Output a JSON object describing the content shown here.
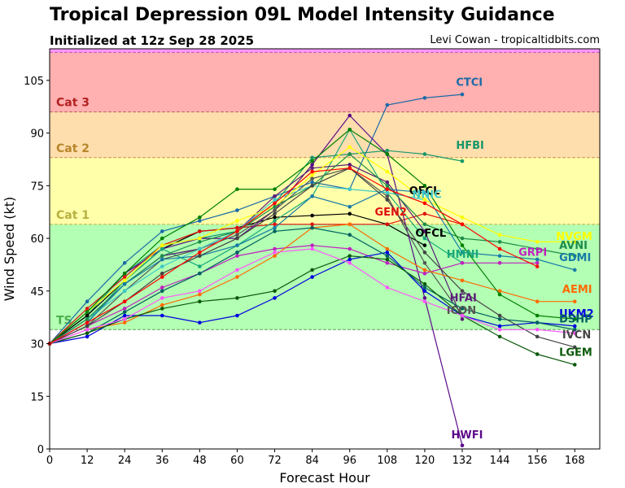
{
  "header": {
    "title": "Tropical Depression 09L Model Intensity Guidance",
    "subtitle": "Initialized at 12z Sep 28 2025",
    "credit": "Levi Cowan - tropicaltidbits.com"
  },
  "chart_data": {
    "type": "line",
    "title": "Tropical Depression 09L Model Intensity Guidance",
    "subtitle": "Initialized at 12z Sep 28 2025",
    "xlabel": "Forecast Hour",
    "ylabel": "Wind Speed (kt)",
    "xlim": [
      0,
      176
    ],
    "ylim": [
      0,
      114
    ],
    "xticks": [
      0,
      12,
      24,
      36,
      48,
      60,
      72,
      84,
      96,
      108,
      120,
      132,
      144,
      156,
      168
    ],
    "yticks": [
      0,
      15,
      30,
      45,
      60,
      75,
      90,
      105
    ],
    "grid": false,
    "bands": [
      {
        "label": "TS",
        "from": 34,
        "to": 64,
        "color": "#b3ffb3",
        "line": "#5aa05a",
        "labelColor": "#4caf50"
      },
      {
        "label": "Cat 1",
        "from": 64,
        "to": 83,
        "color": "#ffffaa",
        "line": "#c8b040",
        "labelColor": "#b8b040"
      },
      {
        "label": "Cat 2",
        "from": 83,
        "to": 96,
        "color": "#ffdead",
        "line": "#c89050",
        "labelColor": "#b8862b"
      },
      {
        "label": "Cat 3",
        "from": 96,
        "to": 113,
        "color": "#ffb0b0",
        "line": "#c06060",
        "labelColor": "#b22222"
      },
      {
        "label": "",
        "from": 113,
        "to": 114,
        "color": "#ff99ff",
        "line": "#c050c0",
        "labelColor": "#c050c0"
      }
    ],
    "series": [
      {
        "name": "CTCI",
        "color": "#1a6aa8",
        "x": [
          0,
          12,
          24,
          36,
          48,
          60,
          72,
          84,
          96,
          108,
          120,
          132
        ],
        "y": [
          30,
          42,
          53,
          62,
          65,
          68,
          72,
          76,
          74,
          98,
          100,
          101
        ],
        "label": {
          "x": 130,
          "y": 103.5
        }
      },
      {
        "name": "HFBI",
        "color": "#17976a",
        "x": [
          0,
          12,
          24,
          36,
          48,
          60,
          72,
          84,
          96,
          108,
          120,
          132
        ],
        "y": [
          30,
          38,
          50,
          58,
          60,
          62,
          70,
          83,
          84,
          85,
          84,
          82
        ],
        "label": {
          "x": 130,
          "y": 85.5
        }
      },
      {
        "name": "OFCL",
        "color": "#000000",
        "x": [
          0,
          12,
          24,
          36,
          48,
          60,
          72,
          84,
          96,
          108,
          120
        ],
        "y": [
          30,
          38,
          48,
          57,
          62,
          63,
          66,
          66.5,
          67,
          64,
          58
        ],
        "label": {
          "x": 115,
          "y": 72.5
        }
      },
      {
        "name": "OFCL",
        "color": "#000000",
        "x": [],
        "y": [],
        "label": {
          "x": 117,
          "y": 60.5
        }
      },
      {
        "name": "GEN2",
        "color": "#e01010",
        "x": [
          0,
          12,
          24,
          36,
          48,
          60,
          72,
          84,
          96,
          108,
          120,
          132
        ],
        "y": [
          30,
          40,
          49,
          58,
          62,
          63,
          64,
          64,
          64,
          64,
          67,
          64
        ],
        "label": {
          "x": 104,
          "y": 66.5
        }
      },
      {
        "name": "HWFI",
        "color": "#5c0a8a",
        "x": [
          0,
          12,
          24,
          36,
          48,
          60,
          72,
          84,
          96,
          108,
          120,
          132
        ],
        "y": [
          30,
          39,
          50,
          57,
          60,
          60,
          68,
          81,
          95,
          84,
          43,
          1
        ],
        "label": {
          "x": 128.5,
          "y": 3
        }
      },
      {
        "name": "HMNI",
        "color": "#1aa87a",
        "x": [
          0,
          12,
          24,
          36,
          48,
          60,
          72,
          84,
          96,
          108,
          120,
          132
        ],
        "y": [
          30,
          36,
          48,
          57,
          52,
          58,
          65,
          72,
          91,
          73,
          60,
          53
        ],
        "label": {
          "x": 127,
          "y": 54.5
        }
      },
      {
        "name": "HFAI",
        "color": "#5c1a7a",
        "x": [
          0,
          12,
          24,
          36,
          48,
          60,
          72,
          84,
          96,
          108,
          120,
          132
        ],
        "y": [
          30,
          37,
          47,
          55,
          57,
          62,
          72,
          80,
          81,
          76,
          62,
          37
        ],
        "label": {
          "x": 128,
          "y": 42
        }
      },
      {
        "name": "ICON",
        "color": "#555555",
        "x": [
          0,
          12,
          24,
          36,
          48,
          60,
          72,
          84,
          96,
          108,
          120,
          132
        ],
        "y": [
          30,
          35,
          45,
          54,
          57,
          61,
          68,
          77,
          80,
          72,
          53,
          38
        ],
        "label": {
          "x": 127,
          "y": 38.5
        }
      },
      {
        "name": "NNIC",
        "color": "#40c8c8",
        "x": [
          0,
          12,
          24,
          36,
          48,
          60,
          72,
          84,
          96,
          108,
          120
        ],
        "y": [
          30,
          37,
          45,
          52,
          57,
          62,
          71,
          75,
          74,
          73,
          71
        ],
        "label": {
          "x": 116,
          "y": 71.5
        }
      },
      {
        "name": "NVGM",
        "color": "#ffff00",
        "x": [
          0,
          12,
          24,
          36,
          48,
          60,
          72,
          84,
          96,
          108,
          120,
          132,
          144,
          156,
          168
        ],
        "y": [
          30,
          39,
          48,
          58,
          60,
          65,
          69,
          78,
          86,
          79,
          71,
          66,
          61,
          59,
          59
        ],
        "label": {
          "x": 162,
          "y": 59.5
        }
      },
      {
        "name": "AVNI",
        "color": "#1e8c4a",
        "x": [
          0,
          12,
          24,
          36,
          48,
          60,
          72,
          84,
          96,
          108,
          120,
          132,
          144,
          156,
          168
        ],
        "y": [
          30,
          37,
          47,
          55,
          59,
          62,
          69,
          75,
          84,
          75,
          64,
          60,
          59,
          57,
          55
        ],
        "label": {
          "x": 163,
          "y": 57
        }
      },
      {
        "name": "GDMI",
        "color": "#177aa8",
        "x": [
          0,
          12,
          24,
          36,
          48,
          60,
          72,
          84,
          96,
          108,
          120,
          132,
          144,
          156,
          168
        ],
        "y": [
          30,
          36,
          47,
          54,
          55,
          58,
          63,
          72,
          69,
          74,
          73,
          56,
          55,
          54,
          51
        ],
        "label": {
          "x": 163,
          "y": 53.5
        }
      },
      {
        "name": "GRPI",
        "color": "#c020c0",
        "x": [
          0,
          12,
          24,
          36,
          48,
          60,
          72,
          84,
          96,
          108,
          120,
          132,
          144,
          156
        ],
        "y": [
          30,
          35,
          40,
          46,
          50,
          55,
          57,
          58,
          57,
          53,
          50,
          53,
          53,
          53
        ],
        "label": {
          "x": 150,
          "y": 55
        }
      },
      {
        "name": "AEMI",
        "color": "#ff6a00",
        "x": [
          0,
          12,
          24,
          36,
          48,
          60,
          72,
          84,
          96,
          108,
          120,
          132,
          144,
          156,
          168
        ],
        "y": [
          30,
          34,
          36,
          41,
          44,
          49,
          55,
          63,
          64,
          57,
          51,
          48,
          45,
          42,
          42
        ],
        "label": {
          "x": 164,
          "y": 44.5
        }
      },
      {
        "name": "UKM2",
        "color": "#0000e0",
        "x": [
          0,
          12,
          24,
          36,
          48,
          60,
          72,
          84,
          96,
          108,
          120,
          132,
          144,
          156,
          168
        ],
        "y": [
          30,
          32,
          38,
          38,
          36,
          38,
          43,
          49,
          54,
          56,
          45,
          38,
          35,
          36,
          35
        ],
        "label": {
          "x": 163,
          "y": 37.5
        }
      },
      {
        "name": "DSHP",
        "color": "#006060",
        "x": [
          0,
          12,
          24,
          36,
          48,
          60,
          72,
          84,
          96,
          108,
          120,
          132,
          144,
          156,
          168
        ],
        "y": [
          30,
          33,
          39,
          45,
          50,
          56,
          62,
          63,
          61,
          55,
          46,
          40,
          37,
          36,
          34
        ],
        "label": {
          "x": 163,
          "y": 36
        }
      },
      {
        "name": "LGEM",
        "color": "#0a5a0a",
        "x": [
          0,
          12,
          24,
          36,
          48,
          60,
          72,
          84,
          96,
          108,
          120,
          132,
          144,
          156,
          168
        ],
        "y": [
          30,
          33,
          37,
          40,
          42,
          43,
          45,
          51,
          55,
          54,
          47,
          38,
          32,
          27,
          24
        ],
        "label": {
          "x": 163,
          "y": 26.5
        }
      },
      {
        "name": "IVCN",
        "color": "#444444",
        "x": [
          0,
          12,
          24,
          36,
          48,
          60,
          72,
          84,
          96,
          108,
          120,
          132,
          144,
          156,
          168
        ],
        "y": [
          30,
          35,
          42,
          50,
          55,
          60,
          67,
          75,
          80,
          71,
          56,
          45,
          38,
          32,
          29
        ],
        "label": {
          "x": 164,
          "y": 31.5
        }
      },
      {
        "name": "",
        "color": "#ff55ff",
        "x": [
          0,
          12,
          24,
          36,
          48,
          60,
          72,
          84,
          96,
          108,
          120,
          132,
          144,
          156,
          168
        ],
        "y": [
          30,
          34,
          37,
          43,
          45,
          51,
          56,
          57,
          53,
          46,
          42,
          38,
          34,
          34,
          33
        ],
        "label": null
      },
      {
        "name": "",
        "color": "#008000",
        "x": [
          0,
          12,
          24,
          36,
          48,
          60,
          72,
          84,
          96,
          108,
          120,
          132,
          144,
          156,
          168
        ],
        "y": [
          30,
          39,
          50,
          60,
          66,
          74,
          74,
          82,
          91,
          84,
          75,
          58,
          44,
          38,
          37
        ],
        "label": null
      },
      {
        "name": "",
        "color": "#ff0000",
        "x": [
          0,
          12,
          24,
          36,
          48,
          60,
          72,
          84,
          96,
          108,
          120,
          132,
          144,
          156
        ],
        "y": [
          30,
          36,
          42,
          49,
          56,
          62,
          70,
          79,
          80,
          74,
          70,
          64,
          57,
          52
        ],
        "label": null
      }
    ]
  }
}
